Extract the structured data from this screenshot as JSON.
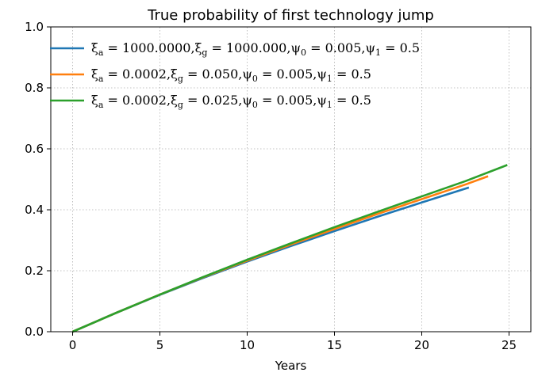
{
  "chart_data": {
    "type": "line",
    "title": "True probability of first technology jump",
    "xlabel": "Years",
    "ylabel": "",
    "xlim": [
      -1.25,
      26.25
    ],
    "ylim": [
      0,
      1.0
    ],
    "xticks": [
      "0",
      "5",
      "10",
      "15",
      "20",
      "25"
    ],
    "yticks": [
      "0.0",
      "0.2",
      "0.4",
      "0.6",
      "0.8",
      "1.0"
    ],
    "grid": true,
    "legend_position": "top-left",
    "series": [
      {
        "name": "ξa = 1000.0000,ξg = 1000.000,ψ0 = 0.005,ψ1 = 0.5",
        "legend": {
          "xa": "1000.0000",
          "xg": "1000.000",
          "p0": "0.005",
          "p1": "0.5"
        },
        "color": "#1f77b4",
        "x": [
          0,
          2.5,
          5,
          7.5,
          10,
          12.5,
          15,
          17.5,
          20,
          22.7
        ],
        "y": [
          0,
          0.062,
          0.121,
          0.177,
          0.23,
          0.281,
          0.33,
          0.378,
          0.424,
          0.473
        ]
      },
      {
        "name": "ξa = 0.0002,ξg = 0.050,ψ0 = 0.005,ψ1 = 0.5",
        "legend": {
          "xa": "0.0002",
          "xg": "0.050",
          "p0": "0.005",
          "p1": "0.5"
        },
        "color": "#ff7f0e",
        "x": [
          0,
          2.5,
          5,
          7.5,
          10,
          12.5,
          15,
          17.5,
          20,
          22.5,
          23.8
        ],
        "y": [
          0,
          0.062,
          0.122,
          0.179,
          0.233,
          0.286,
          0.337,
          0.387,
          0.435,
          0.483,
          0.51
        ]
      },
      {
        "name": "ξa = 0.0002,ξg = 0.025,ψ0 = 0.005,ψ1 = 0.5",
        "legend": {
          "xa": "0.0002",
          "xg": "0.025",
          "p0": "0.005",
          "p1": "0.5"
        },
        "color": "#2ca02c",
        "x": [
          0,
          2.5,
          5,
          7.5,
          10,
          12.5,
          15,
          17.5,
          20,
          22.5,
          24.9
        ],
        "y": [
          0,
          0.062,
          0.122,
          0.18,
          0.236,
          0.29,
          0.343,
          0.394,
          0.444,
          0.494,
          0.547
        ]
      }
    ]
  }
}
